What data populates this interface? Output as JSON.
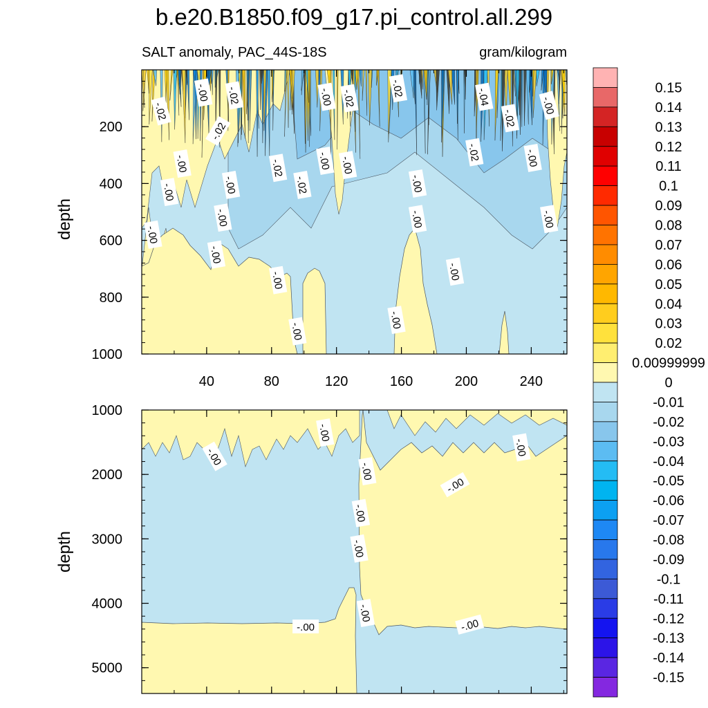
{
  "chart_data": {
    "type": "heatmap",
    "title": "b.e20.B1850.f09_g17.pi_control.all.299",
    "subtitle_left": "SALT anomaly, PAC_44S-18S",
    "subtitle_right": "gram/kilogram",
    "ylabel": "depth",
    "x_ticks": [
      "40",
      "80",
      "120",
      "160",
      "200",
      "240"
    ],
    "x_range": [
      0,
      262
    ],
    "top_panel": {
      "ylim": [
        0,
        1000
      ],
      "y_ticks": [
        "200",
        "400",
        "600",
        "800",
        "1000"
      ],
      "contour_labels": [
        {
          "text": "-.02",
          "x": 12,
          "y": 145,
          "rot": 75
        },
        {
          "text": "-.00",
          "x": 38,
          "y": 80,
          "rot": 80
        },
        {
          "text": "-.02",
          "x": 57,
          "y": 90,
          "rot": 80
        },
        {
          "text": "-.02",
          "x": 47,
          "y": 215,
          "rot": -60
        },
        {
          "text": "-.00",
          "x": 25,
          "y": 330,
          "rot": 80
        },
        {
          "text": "-.00",
          "x": 17,
          "y": 430,
          "rot": 80
        },
        {
          "text": "-.00",
          "x": 7,
          "y": 580,
          "rot": 80
        },
        {
          "text": "-.00",
          "x": 55,
          "y": 405,
          "rot": 80
        },
        {
          "text": "-.00",
          "x": 50,
          "y": 520,
          "rot": 80
        },
        {
          "text": "-.00",
          "x": 46,
          "y": 650,
          "rot": 80
        },
        {
          "text": "-.02",
          "x": 84,
          "y": 345,
          "rot": 80
        },
        {
          "text": "-.02",
          "x": 99,
          "y": 405,
          "rot": 80
        },
        {
          "text": "-.00",
          "x": 113,
          "y": 320,
          "rot": 80
        },
        {
          "text": "-.00",
          "x": 114,
          "y": 95,
          "rot": 80
        },
        {
          "text": "-.02",
          "x": 128,
          "y": 100,
          "rot": 80
        },
        {
          "text": "-.00",
          "x": 127,
          "y": 335,
          "rot": 80
        },
        {
          "text": "-.02",
          "x": 158,
          "y": 65,
          "rot": 80
        },
        {
          "text": "-.00",
          "x": 170,
          "y": 400,
          "rot": 80
        },
        {
          "text": "-.00",
          "x": 170,
          "y": 525,
          "rot": 80
        },
        {
          "text": "-.00",
          "x": 193,
          "y": 710,
          "rot": 80
        },
        {
          "text": "-.02",
          "x": 205,
          "y": 290,
          "rot": 80
        },
        {
          "text": "-.04",
          "x": 211,
          "y": 95,
          "rot": 80
        },
        {
          "text": "-.02",
          "x": 227,
          "y": 170,
          "rot": 80
        },
        {
          "text": "-.00",
          "x": 241,
          "y": 310,
          "rot": 80
        },
        {
          "text": "-.00",
          "x": 251,
          "y": 125,
          "rot": 75
        },
        {
          "text": "-.00",
          "x": 251,
          "y": 525,
          "rot": 80
        },
        {
          "text": "-.00",
          "x": 84,
          "y": 740,
          "rot": 80
        },
        {
          "text": "-.00",
          "x": 96,
          "y": 920,
          "rot": 80
        },
        {
          "text": "-.00",
          "x": 157,
          "y": 880,
          "rot": 80
        }
      ]
    },
    "bottom_panel": {
      "ylim": [
        1000,
        5400
      ],
      "y_ticks": [
        "1000",
        "2000",
        "3000",
        "4000",
        "5000"
      ],
      "contour_labels": [
        {
          "text": "-.00",
          "x": 45,
          "y": 1720,
          "rot": 60
        },
        {
          "text": "-.00",
          "x": 113,
          "y": 1350,
          "rot": 80
        },
        {
          "text": "-.00",
          "x": 139,
          "y": 1950,
          "rot": 80
        },
        {
          "text": "-.00",
          "x": 135,
          "y": 2600,
          "rot": 80
        },
        {
          "text": "-.00",
          "x": 134,
          "y": 3150,
          "rot": 80
        },
        {
          "text": "-.00",
          "x": 138,
          "y": 4150,
          "rot": 80
        },
        {
          "text": "-.00",
          "x": 101,
          "y": 4360,
          "rot": 0
        },
        {
          "text": "-.00",
          "x": 193,
          "y": 2160,
          "rot": -30
        },
        {
          "text": "-.00",
          "x": 202,
          "y": 4330,
          "rot": -15
        },
        {
          "text": "-.00",
          "x": 234,
          "y": 1580,
          "rot": 80
        }
      ]
    },
    "colorbar": {
      "labels": [
        "0.15",
        "0.14",
        "0.13",
        "0.12",
        "0.11",
        "0.1",
        "0.09",
        "0.08",
        "0.07",
        "0.06",
        "0.05",
        "0.04",
        "0.03",
        "0.02",
        "0.00999999",
        "0",
        "-0.01",
        "-0.02",
        "-0.03",
        "-0.04",
        "-0.05",
        "-0.06",
        "-0.07",
        "-0.08",
        "-0.09",
        "-0.1",
        "-0.11",
        "-0.12",
        "-0.13",
        "-0.14",
        "-0.15"
      ],
      "colors": [
        "#ffb3b3",
        "#e86868",
        "#d42424",
        "#c80000",
        "#e00000",
        "#ff0000",
        "#ff2a00",
        "#ff5500",
        "#ff7300",
        "#ff8c00",
        "#ffa500",
        "#ffb800",
        "#ffcd1e",
        "#ffe13c",
        "#ffee70",
        "#fff8b0",
        "#c0e4f2",
        "#a8d7ee",
        "#88c6ec",
        "#5cbcf2",
        "#24bcf4",
        "#00b4f0",
        "#0ca0f2",
        "#1e88f4",
        "#2878ec",
        "#3264e0",
        "#3c5ad6",
        "#2a3ce6",
        "#1414f0",
        "#2c14e8",
        "#5a26e2",
        "#8428e0"
      ]
    }
  }
}
